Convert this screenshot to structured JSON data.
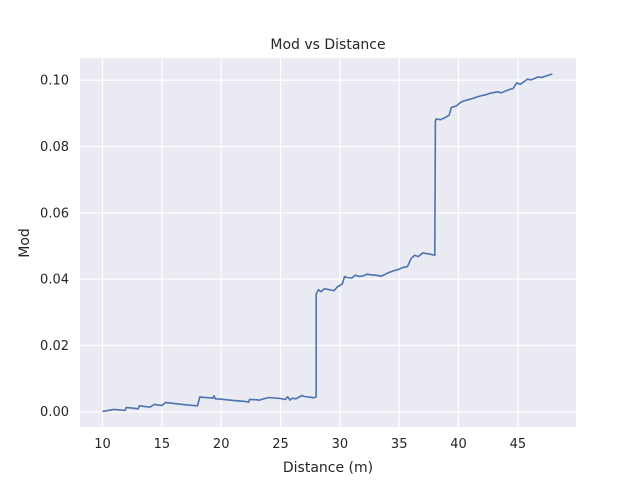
{
  "chart_data": {
    "type": "line",
    "title": "Mod vs Distance",
    "xlabel": "Distance (m)",
    "ylabel": "Mod",
    "xlim": [
      8.1,
      49.9
    ],
    "ylim": [
      -0.0046,
      0.1067
    ],
    "xticks": [
      10,
      15,
      20,
      25,
      30,
      35,
      40,
      45
    ],
    "xtick_labels": [
      "10",
      "15",
      "20",
      "25",
      "30",
      "35",
      "40",
      "45"
    ],
    "yticks": [
      0.0,
      0.02,
      0.04,
      0.06,
      0.08,
      0.1
    ],
    "ytick_labels": [
      "0.00",
      "0.02",
      "0.04",
      "0.06",
      "0.08",
      "0.10"
    ],
    "grid": true,
    "background": "#eaeaf2",
    "series": [
      {
        "color": "#4c72b0",
        "x": [
          10.0,
          10.5,
          11.0,
          11.5,
          11.9,
          12.0,
          12.5,
          13.0,
          13.1,
          13.5,
          14.0,
          14.4,
          14.5,
          15.0,
          15.3,
          15.5,
          16.0,
          17.0,
          18.0,
          18.2,
          18.3,
          19.0,
          19.3,
          19.4,
          19.5,
          20.0,
          21.0,
          22.0,
          22.3,
          22.4,
          23.0,
          23.2,
          24.0,
          25.0,
          25.4,
          25.6,
          25.8,
          26.0,
          26.3,
          26.8,
          27.0,
          27.5,
          27.8,
          28.0,
          28.0,
          28.2,
          28.4,
          28.7,
          29.0,
          29.5,
          29.8,
          30.2,
          30.4,
          30.6,
          31.0,
          31.3,
          31.6,
          32.0,
          32.3,
          32.6,
          33.0,
          33.5,
          34.0,
          34.5,
          35.0,
          35.3,
          35.7,
          36.0,
          36.3,
          36.6,
          37.0,
          37.5,
          38.0,
          38.05,
          38.1,
          38.5,
          38.9,
          39.2,
          39.4,
          39.8,
          40.2,
          40.5,
          40.9,
          41.3,
          41.6,
          42.0,
          42.3,
          42.6,
          43.0,
          43.3,
          43.6,
          44.0,
          44.3,
          44.6,
          44.9,
          45.2,
          45.5,
          45.8,
          46.1,
          46.4,
          46.7,
          47.0,
          47.3,
          47.6,
          47.9
        ],
        "y": [
          0.0001,
          0.0004,
          0.0007,
          0.0005,
          0.0004,
          0.0013,
          0.0011,
          0.0009,
          0.0018,
          0.0016,
          0.0014,
          0.0023,
          0.0021,
          0.0019,
          0.0028,
          0.0027,
          0.0025,
          0.0021,
          0.0018,
          0.0045,
          0.0044,
          0.0042,
          0.0041,
          0.0048,
          0.0039,
          0.0038,
          0.0034,
          0.0031,
          0.0029,
          0.0037,
          0.0036,
          0.0035,
          0.0043,
          0.004,
          0.0037,
          0.0045,
          0.0035,
          0.0041,
          0.0039,
          0.0049,
          0.0046,
          0.0044,
          0.0042,
          0.0045,
          0.0355,
          0.0368,
          0.0362,
          0.0371,
          0.0369,
          0.0365,
          0.0377,
          0.0385,
          0.0408,
          0.0405,
          0.0403,
          0.0412,
          0.0408,
          0.041,
          0.0415,
          0.0413,
          0.0412,
          0.0409,
          0.0418,
          0.0425,
          0.043,
          0.0435,
          0.0438,
          0.0462,
          0.0472,
          0.0468,
          0.0479,
          0.0476,
          0.0472,
          0.0876,
          0.0883,
          0.0881,
          0.0888,
          0.0894,
          0.0918,
          0.0922,
          0.0934,
          0.0938,
          0.0942,
          0.0946,
          0.095,
          0.0954,
          0.0956,
          0.096,
          0.0963,
          0.0965,
          0.0962,
          0.0968,
          0.0972,
          0.0975,
          0.0992,
          0.0988,
          0.0995,
          0.1003,
          0.1001,
          0.1005,
          0.101,
          0.1008,
          0.1012,
          0.1015,
          0.1019
        ]
      }
    ]
  }
}
